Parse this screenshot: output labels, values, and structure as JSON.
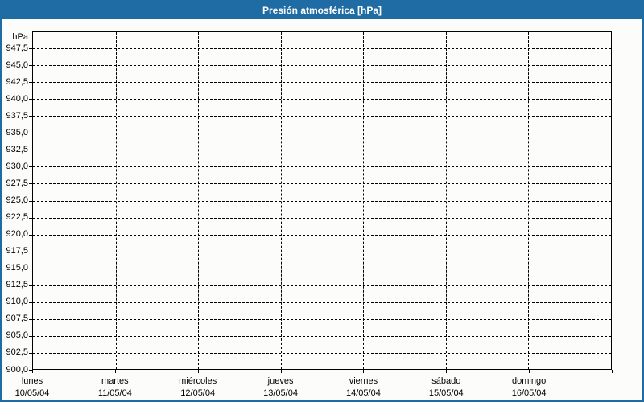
{
  "window": {
    "title": "Presión atmosférica [hPa]"
  },
  "colors": {
    "titlebar_bg": "#1f6ba4",
    "frame_border": "#1f6ba4",
    "page_bg": "#fcfdfa",
    "grid": "#000000",
    "text": "#000000",
    "title_text": "#ffffff"
  },
  "chart_data": {
    "type": "line",
    "title": "Presión atmosférica [hPa]",
    "ylabel": "hPa",
    "ylim": [
      900,
      950
    ],
    "ytick_step": 2.5,
    "decimal_separator": ",",
    "ytick_labels_top_to_bottom": [
      "947,5",
      "945,0",
      "942,5",
      "940,0",
      "937,5",
      "935,0",
      "932,5",
      "930,0",
      "927,5",
      "925,0",
      "922,5",
      "920,0",
      "917,5",
      "915,0",
      "912,5",
      "910,0",
      "907,5",
      "905,0",
      "902,5",
      "900,0"
    ],
    "grid": "dashed",
    "legend": "none",
    "x_axis": {
      "interval_count": 7,
      "days": [
        {
          "day": "lunes",
          "date": "10/05/04"
        },
        {
          "day": "martes",
          "date": "11/05/04"
        },
        {
          "day": "miércoles",
          "date": "12/05/04"
        },
        {
          "day": "jueves",
          "date": "13/05/04"
        },
        {
          "day": "viernes",
          "date": "14/05/04"
        },
        {
          "day": "sábado",
          "date": "15/05/04"
        },
        {
          "day": "domingo",
          "date": "16/05/04"
        }
      ]
    },
    "series": []
  }
}
